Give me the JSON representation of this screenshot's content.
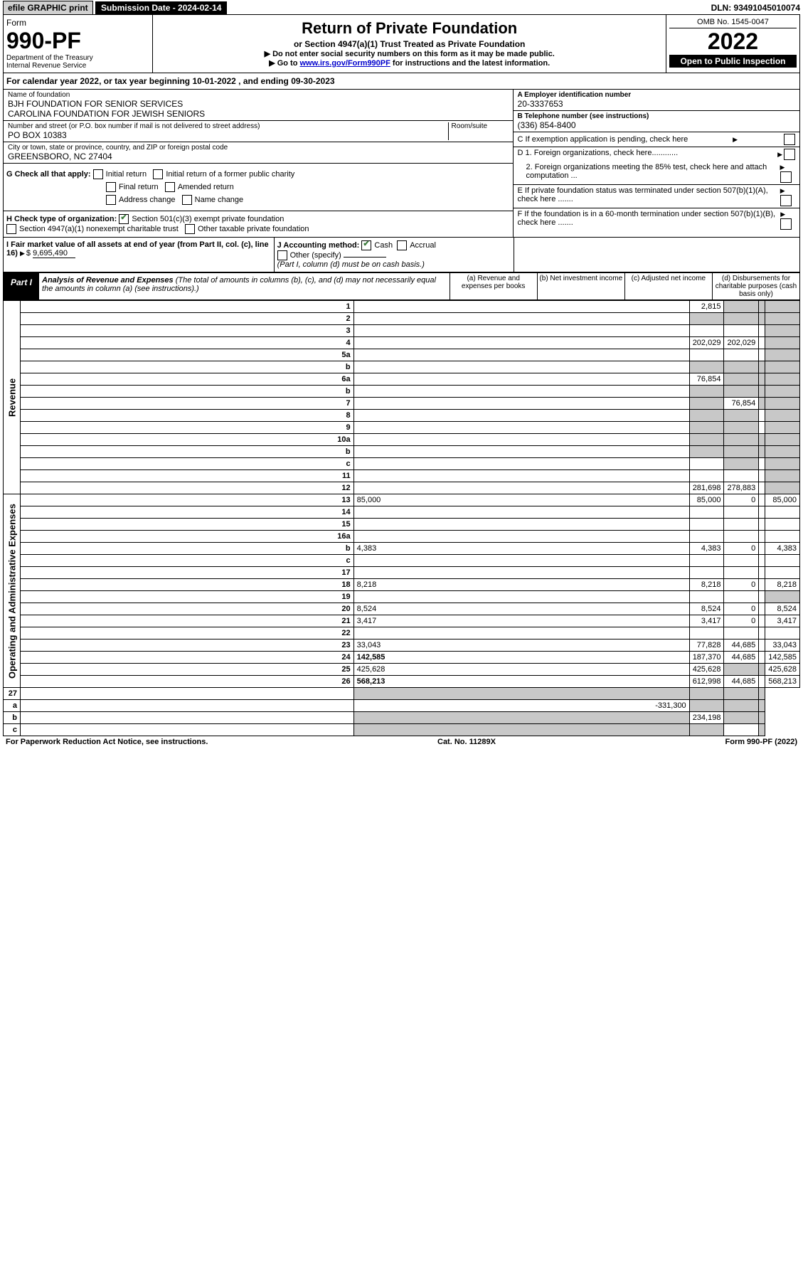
{
  "topbar": {
    "efile": "efile GRAPHIC print",
    "submission": "Submission Date - 2024-02-14",
    "dln": "DLN: 93491045010074"
  },
  "header": {
    "form_label": "Form",
    "form_number": "990-PF",
    "dept": "Department of the Treasury",
    "irs": "Internal Revenue Service",
    "title": "Return of Private Foundation",
    "subtitle": "or Section 4947(a)(1) Trust Treated as Private Foundation",
    "note1": "▶ Do not enter social security numbers on this form as it may be made public.",
    "note2_prefix": "▶ Go to ",
    "note2_link": "www.irs.gov/Form990PF",
    "note2_suffix": " for instructions and the latest information.",
    "omb": "OMB No. 1545-0047",
    "year": "2022",
    "open": "Open to Public Inspection"
  },
  "calendar": {
    "prefix": "For calendar year 2022, or tax year beginning ",
    "begin": "10-01-2022",
    "mid": " , and ending ",
    "end": "09-30-2023"
  },
  "entity": {
    "name_label": "Name of foundation",
    "name1": "BJH FOUNDATION FOR SENIOR SERVICES",
    "name2": "CAROLINA FOUNDATION FOR JEWISH SENIORS",
    "addr_label": "Number and street (or P.O. box number if mail is not delivered to street address)",
    "addr": "PO BOX 10383",
    "room_label": "Room/suite",
    "city_label": "City or town, state or province, country, and ZIP or foreign postal code",
    "city": "GREENSBORO, NC  27404",
    "ein_label": "A Employer identification number",
    "ein": "20-3337653",
    "phone_label": "B Telephone number (see instructions)",
    "phone": "(336) 854-8400",
    "c_label": "C If exemption application is pending, check here",
    "d1": "D 1. Foreign organizations, check here............",
    "d2": "2. Foreign organizations meeting the 85% test, check here and attach computation ...",
    "e": "E  If private foundation status was terminated under section 507(b)(1)(A), check here .......",
    "f": "F  If the foundation is in a 60-month termination under section 507(b)(1)(B), check here .......",
    "g_label": "G Check all that apply:",
    "g_opts": [
      "Initial return",
      "Initial return of a former public charity",
      "Final return",
      "Amended return",
      "Address change",
      "Name change"
    ],
    "h_label": "H Check type of organization:",
    "h1": "Section 501(c)(3) exempt private foundation",
    "h2": "Section 4947(a)(1) nonexempt charitable trust",
    "h3": "Other taxable private foundation",
    "i_label": "I Fair market value of all assets at end of year (from Part II, col. (c), line 16)",
    "i_value": "9,695,490",
    "j_label": "J Accounting method:",
    "j_cash": "Cash",
    "j_accrual": "Accrual",
    "j_other": "Other (specify)",
    "j_note": "(Part I, column (d) must be on cash basis.)"
  },
  "part1": {
    "label": "Part I",
    "title": "Analysis of Revenue and Expenses",
    "title_note": "(The total of amounts in columns (b), (c), and (d) may not necessarily equal the amounts in column (a) (see instructions).)",
    "cols": {
      "a": "(a)  Revenue and expenses per books",
      "b": "(b)  Net investment income",
      "c": "(c)  Adjusted net income",
      "d": "(d)  Disbursements for charitable purposes (cash basis only)"
    }
  },
  "sections": {
    "revenue": "Revenue",
    "expenses": "Operating and Administrative Expenses"
  },
  "rows": [
    {
      "n": "1",
      "d": "",
      "a": "2,815",
      "b": "",
      "c": "",
      "shade_b": true,
      "shade_c": true,
      "shade_d": true
    },
    {
      "n": "2",
      "d": "",
      "a": "",
      "b": "",
      "c": "",
      "shade_a": true,
      "shade_b": true,
      "shade_c": true,
      "shade_d": true
    },
    {
      "n": "3",
      "d": "",
      "a": "",
      "b": "",
      "c": "",
      "shade_d": true
    },
    {
      "n": "4",
      "d": "",
      "a": "202,029",
      "b": "202,029",
      "c": "",
      "shade_d": true
    },
    {
      "n": "5a",
      "d": "",
      "a": "",
      "b": "",
      "c": "",
      "shade_d": true
    },
    {
      "n": "b",
      "d": "",
      "a": "",
      "b": "",
      "c": "",
      "shade_a": true,
      "shade_b": true,
      "shade_c": true,
      "shade_d": true
    },
    {
      "n": "6a",
      "d": "",
      "a": "76,854",
      "b": "",
      "c": "",
      "shade_b": true,
      "shade_c": true,
      "shade_d": true
    },
    {
      "n": "b",
      "d": "",
      "a": "",
      "b": "",
      "c": "",
      "shade_a": true,
      "shade_b": true,
      "shade_c": true,
      "shade_d": true
    },
    {
      "n": "7",
      "d": "",
      "a": "",
      "b": "76,854",
      "c": "",
      "shade_a": true,
      "shade_c": true,
      "shade_d": true
    },
    {
      "n": "8",
      "d": "",
      "a": "",
      "b": "",
      "c": "",
      "shade_a": true,
      "shade_b": true,
      "shade_d": true
    },
    {
      "n": "9",
      "d": "",
      "a": "",
      "b": "",
      "c": "",
      "shade_a": true,
      "shade_b": true,
      "shade_d": true
    },
    {
      "n": "10a",
      "d": "",
      "a": "",
      "b": "",
      "c": "",
      "shade_a": true,
      "shade_b": true,
      "shade_c": true,
      "shade_d": true
    },
    {
      "n": "b",
      "d": "",
      "a": "",
      "b": "",
      "c": "",
      "shade_a": true,
      "shade_b": true,
      "shade_c": true,
      "shade_d": true
    },
    {
      "n": "c",
      "d": "",
      "a": "",
      "b": "",
      "c": "",
      "shade_b": true,
      "shade_d": true
    },
    {
      "n": "11",
      "d": "",
      "a": "",
      "b": "",
      "c": "",
      "shade_d": true
    },
    {
      "n": "12",
      "d": "",
      "a": "281,698",
      "b": "278,883",
      "c": "",
      "shade_d": true,
      "bold": true
    }
  ],
  "exp_rows": [
    {
      "n": "13",
      "d": "85,000",
      "a": "85,000",
      "b": "0",
      "c": ""
    },
    {
      "n": "14",
      "d": "",
      "a": "",
      "b": "",
      "c": ""
    },
    {
      "n": "15",
      "d": "",
      "a": "",
      "b": "",
      "c": ""
    },
    {
      "n": "16a",
      "d": "",
      "a": "",
      "b": "",
      "c": ""
    },
    {
      "n": "b",
      "d": "4,383",
      "a": "4,383",
      "b": "0",
      "c": ""
    },
    {
      "n": "c",
      "d": "",
      "a": "",
      "b": "",
      "c": ""
    },
    {
      "n": "17",
      "d": "",
      "a": "",
      "b": "",
      "c": ""
    },
    {
      "n": "18",
      "d": "8,218",
      "a": "8,218",
      "b": "0",
      "c": ""
    },
    {
      "n": "19",
      "d": "",
      "a": "",
      "b": "",
      "c": "",
      "shade_d": true
    },
    {
      "n": "20",
      "d": "8,524",
      "a": "8,524",
      "b": "0",
      "c": ""
    },
    {
      "n": "21",
      "d": "3,417",
      "a": "3,417",
      "b": "0",
      "c": ""
    },
    {
      "n": "22",
      "d": "",
      "a": "",
      "b": "",
      "c": ""
    },
    {
      "n": "23",
      "d": "33,043",
      "a": "77,828",
      "b": "44,685",
      "c": ""
    },
    {
      "n": "24",
      "d": "142,585",
      "a": "187,370",
      "b": "44,685",
      "c": "",
      "bold": true
    },
    {
      "n": "25",
      "d": "425,628",
      "a": "425,628",
      "b": "",
      "c": "",
      "shade_b": true,
      "shade_c": true
    },
    {
      "n": "26",
      "d": "568,213",
      "a": "612,998",
      "b": "44,685",
      "c": "",
      "bold": true
    }
  ],
  "final_rows": [
    {
      "n": "27",
      "d": "",
      "a": "",
      "b": "",
      "c": "",
      "shade_a": true,
      "shade_b": true,
      "shade_c": true,
      "shade_d": true
    },
    {
      "n": "a",
      "d": "",
      "a": "-331,300",
      "b": "",
      "c": "",
      "shade_b": true,
      "shade_c": true,
      "shade_d": true,
      "bold": true
    },
    {
      "n": "b",
      "d": "",
      "a": "",
      "b": "234,198",
      "c": "",
      "shade_a": true,
      "shade_c": true,
      "shade_d": true,
      "bold": true
    },
    {
      "n": "c",
      "d": "",
      "a": "",
      "b": "",
      "c": "",
      "shade_a": true,
      "shade_b": true,
      "shade_d": true,
      "bold": true
    }
  ],
  "footer": {
    "left": "For Paperwork Reduction Act Notice, see instructions.",
    "mid": "Cat. No. 11289X",
    "right": "Form 990-PF (2022)"
  }
}
